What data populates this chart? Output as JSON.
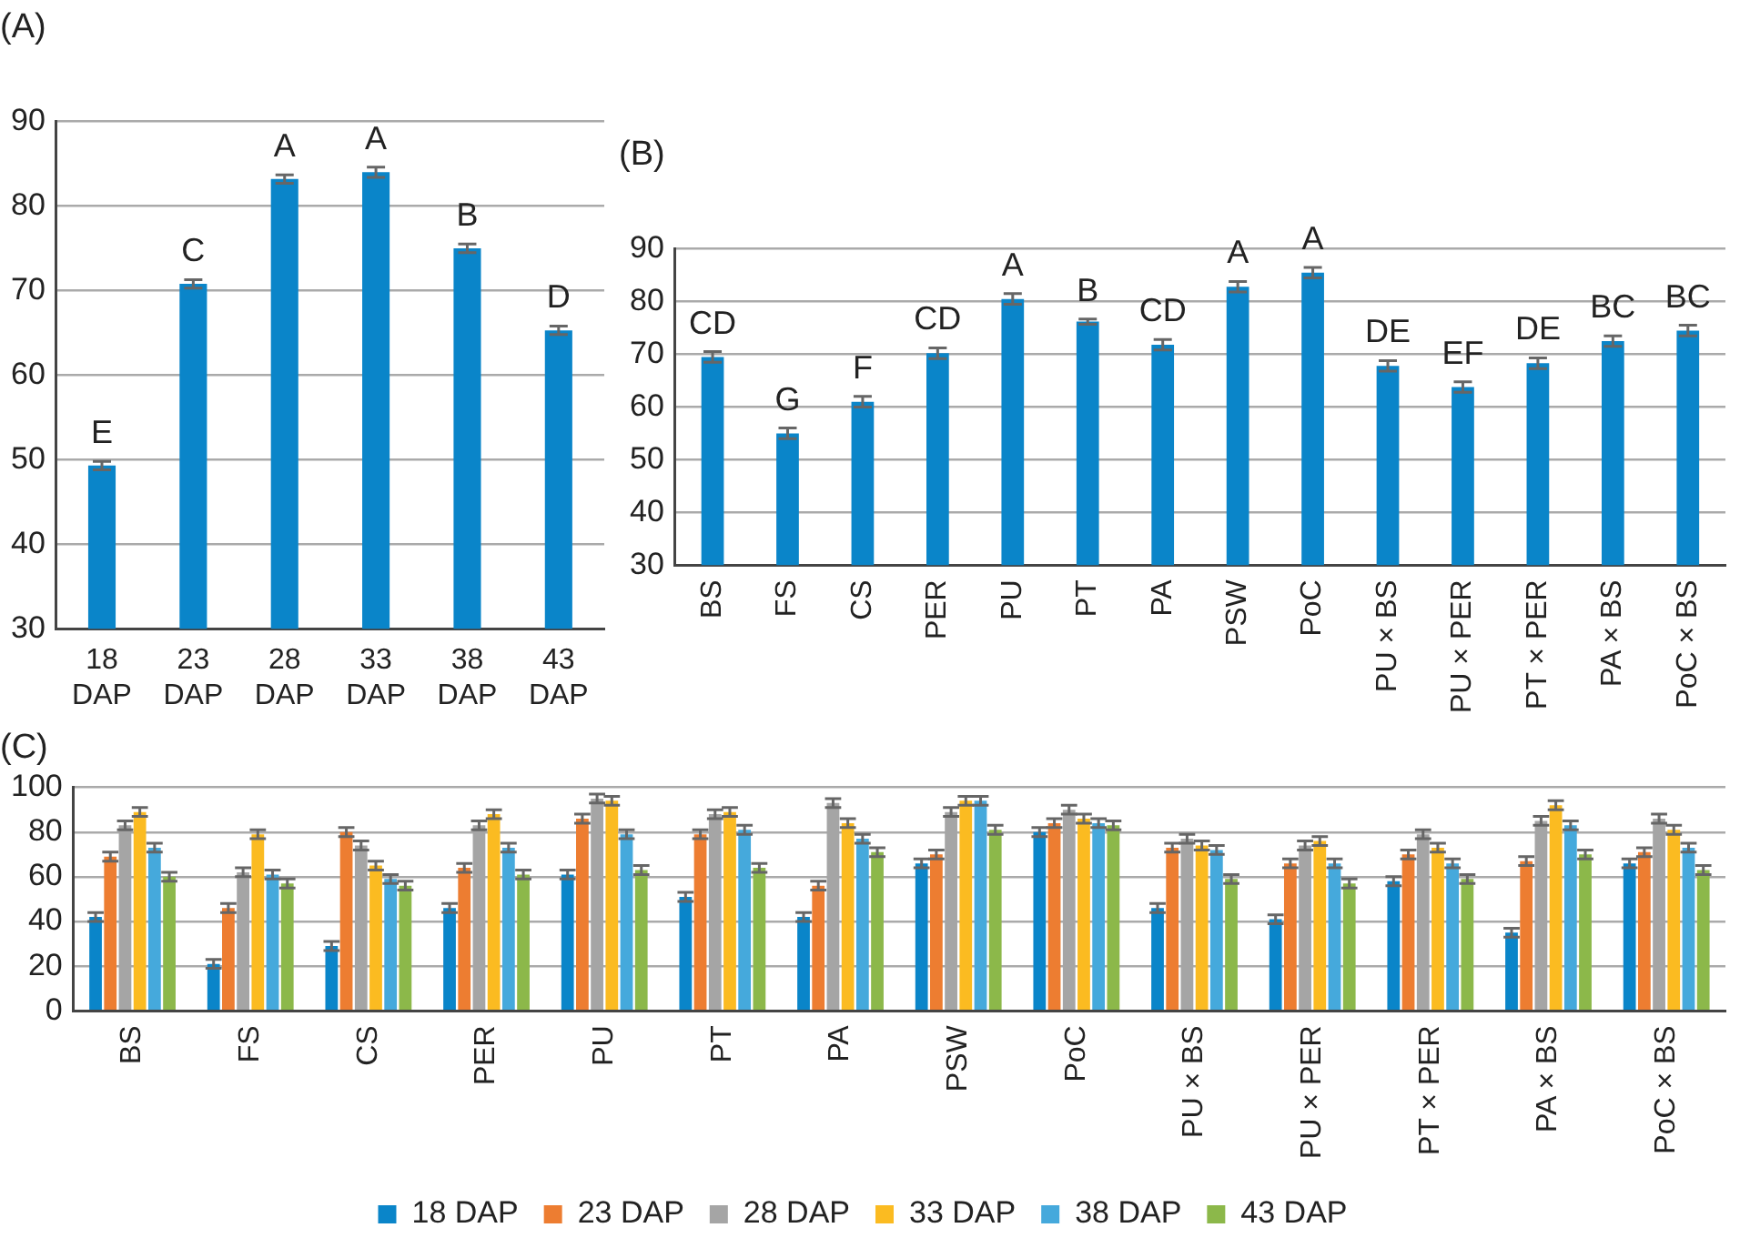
{
  "chart_data": [
    {
      "type": "bar",
      "title": "(A)",
      "categories": [
        "18 DAP",
        "23 DAP",
        "28 DAP",
        "33 DAP",
        "38 DAP",
        "43 DAP"
      ],
      "values": [
        49.3,
        70.8,
        83.2,
        84,
        75,
        65.3
      ],
      "errors": [
        0.5,
        0.5,
        0.5,
        0.6,
        0.5,
        0.5
      ],
      "value_labels": [
        "E",
        "C",
        "A",
        "A",
        "B",
        "D"
      ],
      "color": "#0a85c9",
      "ylim": [
        30,
        90
      ],
      "yticks": [
        30,
        40,
        50,
        60,
        70,
        80,
        90
      ],
      "grid": "y"
    },
    {
      "type": "bar",
      "title": "(B)",
      "categories": [
        "BS",
        "FS",
        "CS",
        "PER",
        "PU",
        "PT",
        "PA",
        "PSW",
        "PoC",
        "PU × BS",
        "PU × PER",
        "PT × PER",
        "PA × BS",
        "PoC × BS"
      ],
      "values": [
        69.5,
        55,
        61,
        70.2,
        80.5,
        76.2,
        71.8,
        82.8,
        85.5,
        67.8,
        63.8,
        68.3,
        72.5,
        74.5
      ],
      "errors": [
        1,
        1,
        1,
        1,
        1,
        0.5,
        1,
        1,
        1,
        1,
        1,
        1,
        1,
        1
      ],
      "value_labels": [
        "CD",
        "G",
        "F",
        "CD",
        "A",
        "B",
        "CD",
        "A",
        "A",
        "DE",
        "EF",
        "DE",
        "BC",
        "BC"
      ],
      "color": "#0a85c9",
      "ylim": [
        30,
        90
      ],
      "yticks": [
        30,
        40,
        50,
        60,
        70,
        80,
        90
      ],
      "grid": "y"
    },
    {
      "type": "bar",
      "title": "(C)",
      "categories": [
        "BS",
        "FS",
        "CS",
        "PER",
        "PU",
        "PT",
        "PA",
        "PSW",
        "PoC",
        "PU × BS",
        "PU × PER",
        "PT × PER",
        "PA × BS",
        "PoC × BS"
      ],
      "series": [
        {
          "name": "18 DAP",
          "color": "#0a85c9",
          "values": [
            42,
            21,
            29,
            46,
            61,
            51,
            42,
            66,
            80,
            46,
            41,
            58,
            35,
            66
          ],
          "errors": [
            2,
            2,
            2,
            2,
            2,
            2,
            2,
            2,
            2,
            2,
            2,
            2,
            2,
            2
          ]
        },
        {
          "name": "23 DAP",
          "color": "#ed7d31",
          "values": [
            69,
            46,
            80,
            64,
            86,
            79,
            56,
            70,
            84,
            73,
            66,
            70,
            67,
            71
          ],
          "errors": [
            2,
            2,
            2,
            2,
            2,
            2,
            2,
            2,
            2,
            2,
            2,
            2,
            2,
            2
          ]
        },
        {
          "name": "28 DAP",
          "color": "#a5a5a5",
          "values": [
            83,
            62,
            74,
            83,
            95,
            88,
            93,
            89,
            90,
            77,
            74,
            79,
            85,
            86
          ],
          "errors": [
            2,
            2,
            2,
            2,
            2,
            2,
            2,
            2,
            2,
            2,
            2,
            2,
            2,
            2
          ]
        },
        {
          "name": "33 DAP",
          "color": "#fbbb21",
          "values": [
            89,
            79,
            65,
            88,
            94,
            89,
            84,
            94,
            86,
            74,
            76,
            73,
            92,
            81
          ],
          "errors": [
            2,
            2,
            2,
            2,
            2,
            2,
            2,
            2,
            2,
            2,
            2,
            2,
            2,
            2
          ]
        },
        {
          "name": "38 DAP",
          "color": "#45a9dc",
          "values": [
            73,
            61,
            59,
            73,
            79,
            81,
            77,
            94,
            84,
            72,
            66,
            66,
            83,
            73
          ],
          "errors": [
            2,
            2,
            2,
            2,
            2,
            2,
            2,
            2,
            2,
            2,
            2,
            2,
            2,
            2
          ]
        },
        {
          "name": "43 DAP",
          "color": "#8cb84a",
          "values": [
            60,
            57,
            56,
            61,
            63,
            64,
            71,
            81,
            83,
            59,
            57,
            59,
            70,
            63
          ],
          "errors": [
            2,
            2,
            2,
            2,
            2,
            2,
            2,
            2,
            2,
            2,
            2,
            2,
            2,
            2
          ]
        }
      ],
      "ylim": [
        0,
        100
      ],
      "yticks": [
        0,
        20,
        40,
        60,
        80,
        100
      ],
      "grid": "y",
      "legend": "bottom"
    }
  ]
}
